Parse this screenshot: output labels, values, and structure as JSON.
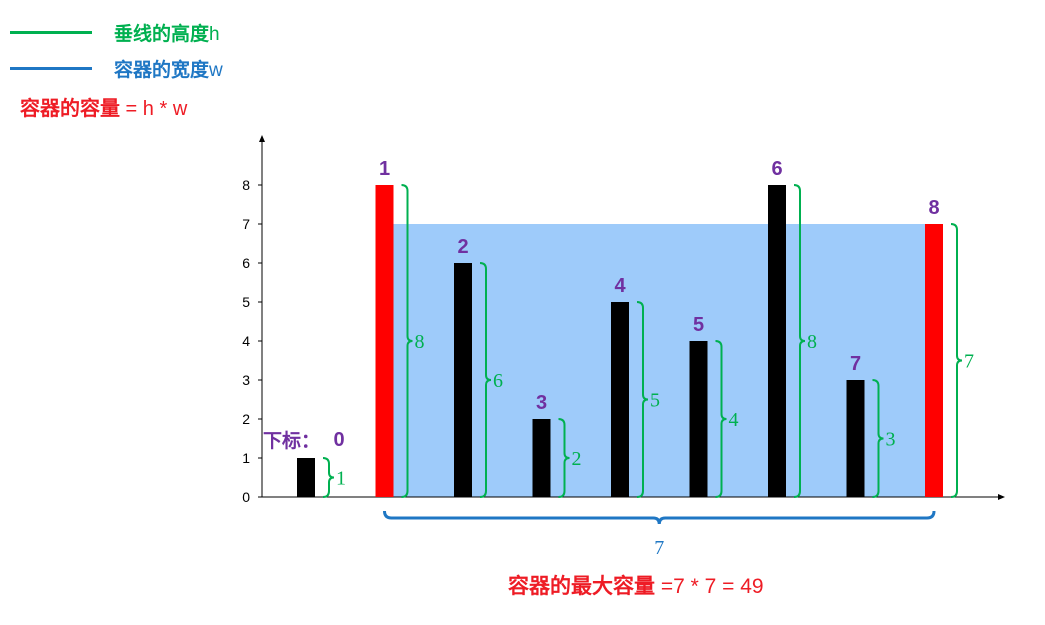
{
  "legend": [
    {
      "label": "垂线的高度",
      "label_suffix": "h",
      "color": "#00b050"
    },
    {
      "label": "容器的宽度",
      "label_suffix": "w",
      "color": "#1f77c4"
    }
  ],
  "formula": {
    "label": "容器的容量",
    "expression": " = h * w"
  },
  "index_label": "下标：",
  "result": {
    "label": "容器的最大容量",
    "expression": " =7 * 7 = 49"
  },
  "colors": {
    "bar": "#000000",
    "selected_bar": "#ff0000",
    "water": "#9ecbfa",
    "height_bracket": "#00b050",
    "width_bracket": "#1f77c4",
    "index": "#7030a0"
  },
  "chart_data": {
    "type": "bar",
    "categories": [
      "0",
      "1",
      "2",
      "3",
      "4",
      "5",
      "6",
      "7",
      "8"
    ],
    "values": [
      1,
      8,
      6,
      2,
      5,
      4,
      8,
      3,
      7
    ],
    "selected": [
      1,
      8
    ],
    "water_level": 7,
    "width_label": "7",
    "y_ticks": [
      "0",
      "1",
      "2",
      "3",
      "4",
      "5",
      "6",
      "7",
      "8"
    ],
    "ylim": [
      0,
      9
    ]
  }
}
